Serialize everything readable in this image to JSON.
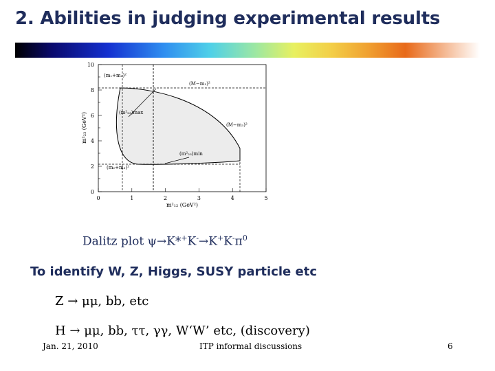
{
  "slide": {
    "title": "2. Abilities in judging experimental results",
    "caption": "Dalitz plot ψ→K*+K-→K+K-π0",
    "caption_parts": {
      "prefix": "Dalitz plot ψ→K*",
      "sup1": "+",
      "mid1": "K",
      "sup2": "-",
      "mid2": "→K",
      "sup3": "+",
      "mid3": "K",
      "sup4": "-",
      "mid4": "π",
      "sup5": "0"
    },
    "subheading": "To identify W, Z, Higgs, SUSY particle etc",
    "line1": "Z → μμ, bb, etc",
    "line2": "H → μμ, bb, ττ, γγ, W‘W’ etc, (discovery)",
    "footer": {
      "date": "Jan. 21, 2010",
      "center": "ITP informal discussions",
      "page": "6"
    }
  },
  "header_bar": {
    "colors": [
      "#000000",
      "#1430d0",
      "#2f8ef0",
      "#9fe8a0",
      "#f3cf47",
      "#e86a1a",
      "#ffffff"
    ]
  },
  "figure": {
    "y_ticks": [
      "0",
      "2",
      "4",
      "6",
      "8",
      "10"
    ],
    "x_ticks": [
      "0",
      "1",
      "2",
      "3",
      "4",
      "5"
    ],
    "ylabel": "m²₂₃ (GeV²)",
    "xlabel": "m²₁₂ (GeV²)",
    "annotations": {
      "top_left": "(m₁+m₃)²",
      "top_right": "(M−m₁)²",
      "max": "(m²₂₃)max",
      "right": "(M−m₃)²",
      "min": "(m²₂₃)min",
      "bottom_left": "(m₂+m₃)²"
    }
  }
}
